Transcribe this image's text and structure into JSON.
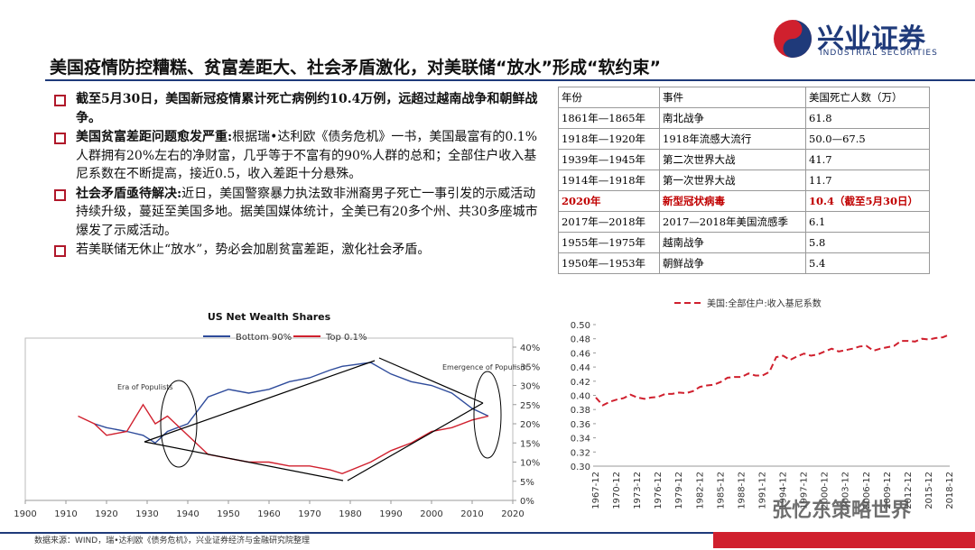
{
  "header": {
    "title": "美国疫情防控糟糕、贫富差距大、社会矛盾激化，对美联储“放水”形成“软约束”",
    "logo": "兴业证券",
    "logo_en": "INDUSTRIAL SECURITIES"
  },
  "bullets": [
    {
      "bold": "截至5月30日，美国新冠疫情累计死亡病例约10.4万例，远超过越南战争和朝鲜战争。"
    },
    {
      "bold": "美国贫富差距问题愈发严重:",
      "text": "根据瑞•达利欧《债务危机》一书，美国最富有的0.1%人群拥有20%左右的净财富，几乎等于不富有的90%人群的总和；全部住户收入基尼系数在不断提高，接近0.5，收入差距十分悬殊。"
    },
    {
      "bold": "社会矛盾亟待解决:",
      "text": "近日，美国警察暴力执法致非洲裔男子死亡一事引发的示威活动持续升级，蔓延至美国多地。据美国媒体统计，全美已有20多个州、共30多座城市爆发了示威活动。"
    },
    {
      "text": "若美联储无休止“放水”，势必会加剧贫富差距，激化社会矛盾。"
    }
  ],
  "table": {
    "header": [
      "年份",
      "事件",
      "美国死亡人数（万）"
    ],
    "rows": [
      [
        "1861年—1865年",
        "南北战争",
        "61.8"
      ],
      [
        "1918年—1920年",
        "1918年流感大流行",
        "50.0—67.5"
      ],
      [
        "1939年—1945年",
        "第二次世界大战",
        "41.7"
      ],
      [
        "1914年—1918年",
        "第一次世界大战",
        "11.7"
      ],
      [
        "2020年",
        "新型冠状病毒",
        "10.4（截至5月30日）"
      ],
      [
        "2017年—2018年",
        "2017—2018年美国流感季",
        "6.1"
      ],
      [
        "1955年—1975年",
        "越南战争",
        "5.8"
      ],
      [
        "1950年—1953年",
        "朝鲜战争",
        "5.4"
      ]
    ]
  },
  "chart_data": [
    {
      "type": "line",
      "title": "US Net Wealth Shares",
      "annotations": [
        "Era of Populists",
        "Emergence of Populism"
      ],
      "x": [
        1913,
        1917,
        1920,
        1925,
        1929,
        1932,
        1935,
        1940,
        1945,
        1950,
        1955,
        1960,
        1965,
        1970,
        1975,
        1978,
        1985,
        1990,
        1995,
        2000,
        2005,
        2010,
        2014
      ],
      "series": [
        {
          "name": "Bottom 90%",
          "color": "#2e4b9b",
          "values": [
            null,
            20,
            19,
            18,
            17,
            15,
            18,
            20,
            27,
            29,
            28,
            29,
            31,
            32,
            34,
            35,
            36,
            33,
            31,
            30,
            28,
            24,
            22
          ]
        },
        {
          "name": "Top 0.1%",
          "color": "#d0202e",
          "values": [
            22,
            20,
            17,
            18,
            25,
            20,
            22,
            17,
            12,
            11,
            10,
            10,
            9,
            9,
            8,
            7,
            10,
            13,
            15,
            18,
            19,
            21,
            22
          ]
        }
      ],
      "xlim": [
        1900,
        2020
      ],
      "xticks": [
        1900,
        1910,
        1920,
        1930,
        1940,
        1950,
        1960,
        1970,
        1980,
        1990,
        2000,
        2010,
        2020
      ],
      "ylim": [
        0,
        40
      ],
      "yticks": [
        {
          "value": 0,
          "label": "0%"
        },
        {
          "value": 5,
          "label": "5%"
        },
        {
          "value": 10,
          "label": "10%"
        },
        {
          "value": 15,
          "label": "15%"
        },
        {
          "value": 20,
          "label": "20%"
        },
        {
          "value": 25,
          "label": "25%"
        },
        {
          "value": 30,
          "label": "30%"
        },
        {
          "value": 35,
          "label": "35%"
        },
        {
          "value": 40,
          "label": "40%"
        }
      ],
      "grid": false
    },
    {
      "type": "line",
      "categories": [
        "1967-12",
        null,
        null,
        "1970-12",
        null,
        null,
        "1973-12",
        null,
        null,
        "1976-12",
        null,
        null,
        "1979-12",
        null,
        null,
        "1982-12",
        null,
        null,
        "1985-12",
        null,
        null,
        "1988-12",
        null,
        null,
        "1991-12",
        null,
        null,
        "1994-12",
        null,
        null,
        "1997-12",
        null,
        null,
        "2000-12",
        null,
        null,
        "2003-12",
        null,
        null,
        "2006-12",
        null,
        null,
        "2009-12",
        null,
        null,
        "2012-12",
        null,
        null,
        "2015-12",
        null,
        null,
        "2018-12"
      ],
      "series": [
        {
          "name": "美国:全部住户:收入基尼系数",
          "color": "#d0202e",
          "values": [
            0.397,
            0.386,
            0.391,
            0.394,
            0.396,
            0.401,
            0.397,
            0.395,
            0.397,
            0.398,
            0.402,
            0.402,
            0.404,
            0.403,
            0.406,
            0.412,
            0.414,
            0.415,
            0.419,
            0.425,
            0.426,
            0.426,
            0.431,
            0.428,
            0.428,
            0.433,
            0.454,
            0.456,
            0.45,
            0.455,
            0.459,
            0.456,
            0.458,
            0.462,
            0.466,
            0.462,
            0.464,
            0.466,
            0.469,
            0.47,
            0.463,
            0.466,
            0.468,
            0.47,
            0.477,
            0.477,
            0.476,
            0.48,
            0.479,
            0.481,
            0.482,
            0.486
          ]
        }
      ],
      "ylim": [
        0.3,
        0.5
      ],
      "yticks": [
        {
          "value": 0.3,
          "label": "0.30"
        },
        {
          "value": 0.32,
          "label": "0.32"
        },
        {
          "value": 0.34,
          "label": "0.34"
        },
        {
          "value": 0.36,
          "label": "0.36"
        },
        {
          "value": 0.38,
          "label": "0.38"
        },
        {
          "value": 0.4,
          "label": "0.40"
        },
        {
          "value": 0.42,
          "label": "0.42"
        },
        {
          "value": 0.44,
          "label": "0.44"
        },
        {
          "value": 0.46,
          "label": "0.46"
        },
        {
          "value": 0.48,
          "label": "0.48"
        },
        {
          "value": 0.5,
          "label": "0.50"
        }
      ],
      "grid": false
    }
  ],
  "footer": {
    "source": "数据来源：WIND，瑞•达利欧《债务危机》，兴业证券经济与金融研究院整理",
    "watermark": "张忆东策略世界"
  }
}
